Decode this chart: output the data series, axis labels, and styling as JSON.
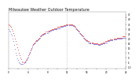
{
  "title": "Milwaukee Weather Outdoor Temperature\nvs Wind Chill\nper Minute\n(24 Hours)",
  "title_fontsize": 3.5,
  "bg_color": "#ffffff",
  "plot_bg_color": "#ffffff",
  "line1_color": "#dd0000",
  "line2_color": "#0000cc",
  "vline_color": "#aaaaaa",
  "ylabel_right_ticks": [
    "45",
    "40",
    "35",
    "30",
    "25",
    "20",
    "15",
    "10",
    "5",
    "0",
    "-5",
    "-10"
  ],
  "ylim": [
    -12,
    48
  ],
  "xlim": [
    0,
    1440
  ],
  "vline_x": 720,
  "temp_x": [
    0,
    10,
    20,
    30,
    40,
    50,
    60,
    70,
    80,
    90,
    100,
    110,
    120,
    130,
    140,
    150,
    160,
    170,
    180,
    190,
    200,
    210,
    220,
    230,
    240,
    250,
    260,
    270,
    280,
    290,
    300,
    310,
    320,
    330,
    340,
    350,
    360,
    370,
    380,
    390,
    400,
    410,
    420,
    430,
    440,
    450,
    460,
    470,
    480,
    490,
    500,
    510,
    520,
    530,
    540,
    550,
    560,
    570,
    580,
    590,
    600,
    610,
    620,
    630,
    640,
    650,
    660,
    670,
    680,
    690,
    700,
    710,
    720,
    730,
    740,
    750,
    760,
    770,
    780,
    790,
    800,
    810,
    820,
    830,
    840,
    850,
    860,
    870,
    880,
    890,
    900,
    910,
    920,
    930,
    940,
    950,
    960,
    970,
    980,
    990,
    1000,
    1010,
    1020,
    1030,
    1040,
    1050,
    1060,
    1070,
    1080,
    1090,
    1100,
    1110,
    1120,
    1130,
    1140,
    1150,
    1160,
    1170,
    1180,
    1190,
    1200,
    1210,
    1220,
    1230,
    1240,
    1250,
    1260,
    1270,
    1280,
    1290,
    1300,
    1310,
    1320,
    1330,
    1340,
    1350,
    1360,
    1370,
    1380,
    1390,
    1400,
    1410,
    1420,
    1430,
    1440
  ],
  "temp_y": [
    35,
    34,
    33,
    32,
    30,
    28,
    26,
    23,
    20,
    17,
    14,
    11,
    8,
    5,
    2,
    0,
    -2,
    -4,
    -5,
    -5,
    -4,
    -3,
    -2,
    0,
    2,
    4,
    6,
    8,
    10,
    12,
    14,
    15,
    16,
    17,
    18,
    18,
    19,
    20,
    21,
    22,
    23,
    24,
    25,
    25,
    26,
    26,
    27,
    27,
    27,
    28,
    28,
    29,
    29,
    30,
    30,
    30,
    31,
    31,
    31,
    31,
    32,
    32,
    32,
    32,
    33,
    33,
    33,
    33,
    34,
    34,
    34,
    35,
    35,
    35,
    35,
    35,
    35,
    35,
    35,
    34,
    34,
    33,
    32,
    31,
    30,
    29,
    28,
    27,
    26,
    25,
    24,
    23,
    22,
    21,
    20,
    19,
    18,
    18,
    17,
    17,
    16,
    16,
    16,
    16,
    15,
    15,
    15,
    15,
    15,
    15,
    14,
    14,
    14,
    15,
    15,
    15,
    16,
    16,
    16,
    17,
    17,
    17,
    18,
    18,
    18,
    19,
    19,
    19,
    19,
    20,
    20,
    20,
    20,
    21,
    21,
    21,
    21,
    21,
    21,
    21,
    22,
    22,
    22,
    22,
    43
  ],
  "wc_x": [
    0,
    10,
    20,
    30,
    40,
    50,
    60,
    70,
    80,
    90,
    100,
    110,
    120,
    130,
    140,
    150,
    160,
    170,
    180,
    190,
    200,
    210,
    220,
    230,
    240,
    250,
    260,
    270,
    280,
    290,
    300,
    310,
    320,
    330,
    340,
    350,
    360,
    370,
    380,
    390,
    400,
    410,
    420,
    430,
    440,
    450,
    460,
    470,
    480,
    490,
    500,
    510,
    520,
    530,
    540,
    550,
    560,
    570,
    580,
    590,
    600,
    610,
    620,
    630,
    640,
    650,
    660,
    670,
    680,
    690,
    700,
    710,
    720,
    730,
    740,
    750,
    760,
    770,
    780,
    790,
    800,
    810,
    820,
    830,
    840,
    850,
    860,
    870,
    880,
    890,
    900,
    910,
    920,
    930,
    940,
    950,
    960,
    970,
    980,
    990,
    1000,
    1010,
    1020,
    1030,
    1040,
    1050,
    1060,
    1070,
    1080,
    1090,
    1100,
    1110,
    1120,
    1130,
    1140,
    1150,
    1160,
    1170,
    1180,
    1190,
    1200,
    1210,
    1220,
    1230,
    1240,
    1250,
    1260,
    1270,
    1280,
    1290,
    1300,
    1310,
    1320,
    1330,
    1340,
    1350,
    1360,
    1370,
    1380,
    1390,
    1400,
    1410,
    1420,
    1430,
    1440
  ],
  "wc_y": [
    30,
    28,
    27,
    25,
    23,
    20,
    17,
    13,
    9,
    5,
    2,
    -1,
    -3,
    -5,
    -6,
    -7,
    -7,
    -7,
    -7,
    -6,
    -5,
    -4,
    -3,
    -1,
    1,
    3,
    5,
    7,
    9,
    11,
    13,
    14,
    15,
    16,
    17,
    17,
    18,
    19,
    20,
    21,
    22,
    23,
    24,
    24,
    25,
    25,
    26,
    26,
    26,
    27,
    27,
    28,
    28,
    29,
    29,
    29,
    30,
    30,
    30,
    30,
    31,
    31,
    31,
    31,
    32,
    32,
    32,
    32,
    33,
    33,
    33,
    34,
    34,
    34,
    34,
    34,
    34,
    34,
    34,
    33,
    33,
    32,
    31,
    30,
    29,
    28,
    27,
    26,
    25,
    24,
    23,
    22,
    21,
    20,
    19,
    18,
    17,
    17,
    16,
    16,
    15,
    15,
    15,
    15,
    14,
    14,
    14,
    14,
    14,
    14,
    13,
    13,
    13,
    14,
    14,
    14,
    15,
    15,
    15,
    16,
    16,
    16,
    17,
    17,
    17,
    18,
    18,
    18,
    18,
    19,
    19,
    19,
    19,
    20,
    20,
    20,
    20,
    20,
    20,
    20,
    21,
    21,
    21,
    21,
    42
  ]
}
